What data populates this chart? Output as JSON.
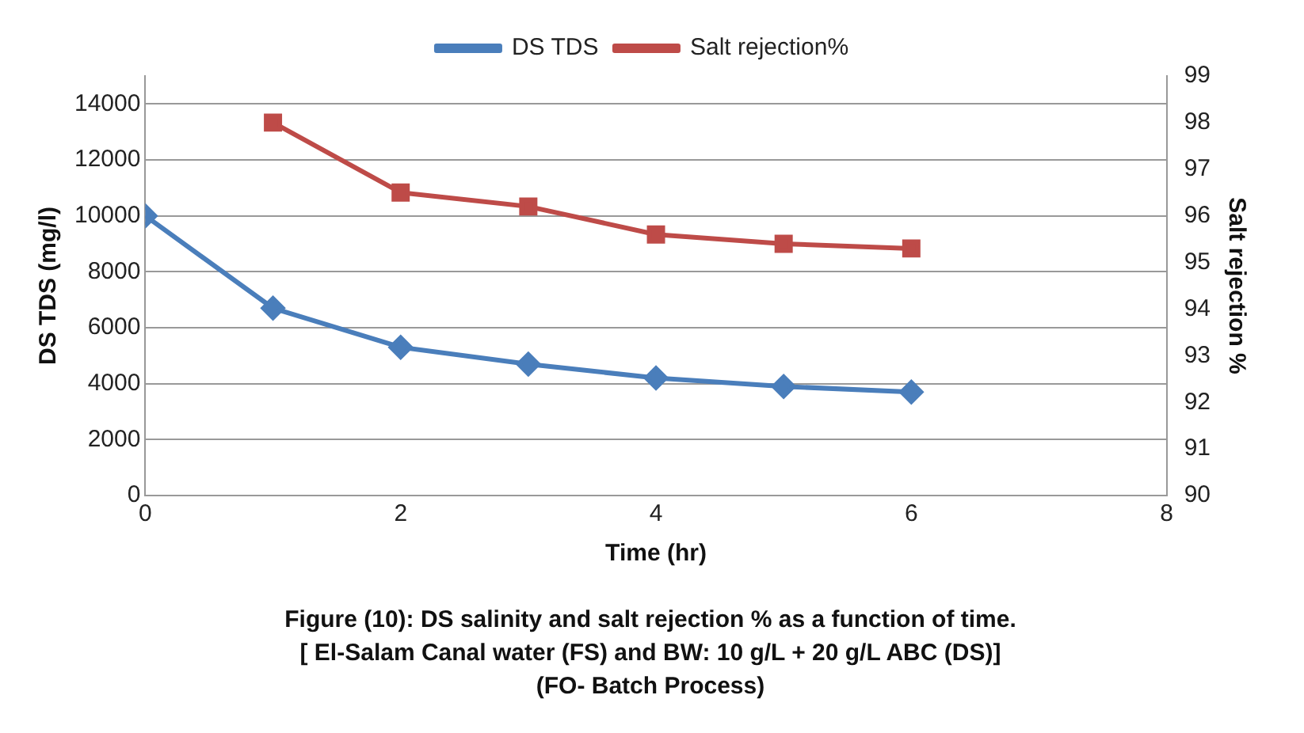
{
  "chart_data": {
    "type": "line",
    "x": [
      0,
      1,
      2,
      3,
      4,
      5,
      6
    ],
    "series": [
      {
        "name": "DS TDS",
        "color": "#4a7ebb",
        "values": [
          10000,
          6700,
          5300,
          4700,
          4200,
          3900,
          3700
        ]
      },
      {
        "name": "Salt rejection%",
        "color": "#be4b48",
        "axis": "y2",
        "marker": "square",
        "values": [
          null,
          98.0,
          96.5,
          96.2,
          95.6,
          95.4,
          95.3
        ]
      }
    ],
    "marker": "diamond",
    "xlabel": "Time (hr)",
    "ylabel": "DS TDS (mg/l)",
    "y2label": "Salt rejection %",
    "xlim": [
      0,
      8
    ],
    "xticks": [
      0,
      2,
      4,
      6,
      8
    ],
    "ylim": [
      0,
      15000
    ],
    "yticks": [
      0,
      2000,
      4000,
      6000,
      8000,
      10000,
      12000,
      14000
    ],
    "y2lim": [
      90,
      99
    ],
    "y2ticks": [
      90,
      91,
      92,
      93,
      94,
      95,
      96,
      97,
      98,
      99
    ],
    "grid": "y",
    "legend": "top",
    "annotations": [
      "Figure (10): DS salinity and salt rejection % as a function of time.",
      "[ El-Salam Canal water (FS) and BW: 10 g/L + 20 g/L ABC (DS)]",
      "(FO- Batch Process)"
    ]
  }
}
